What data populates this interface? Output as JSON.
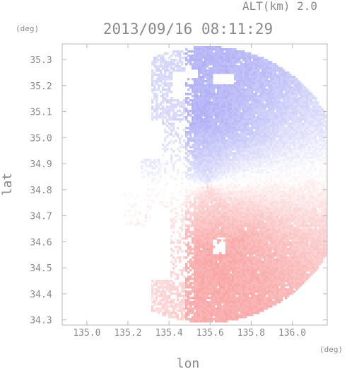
{
  "chart_data": {
    "type": "heatmap",
    "title": "2013/09/16 08:11:29",
    "annotation": "ALT(km) 2.0",
    "xlabel": "lon",
    "ylabel": "lat",
    "x_unit": "(deg)",
    "y_unit": "(deg)",
    "xlim": [
      134.88,
      136.17
    ],
    "ylim": [
      34.28,
      35.36
    ],
    "x_ticks": [
      "135.0",
      "135.2",
      "135.4",
      "135.6",
      "135.8",
      "136.0"
    ],
    "y_ticks": [
      "35.3",
      "35.2",
      "35.1",
      "35.0",
      "34.9",
      "34.8",
      "34.7",
      "34.6",
      "34.5",
      "34.4",
      "34.3"
    ],
    "radar_center": [
      135.59,
      34.82
    ],
    "colormap": {
      "negative": "#7b7cf0",
      "zero": "#ffffff",
      "positive": "#f46a6a"
    },
    "grid": false,
    "legend": "none"
  }
}
